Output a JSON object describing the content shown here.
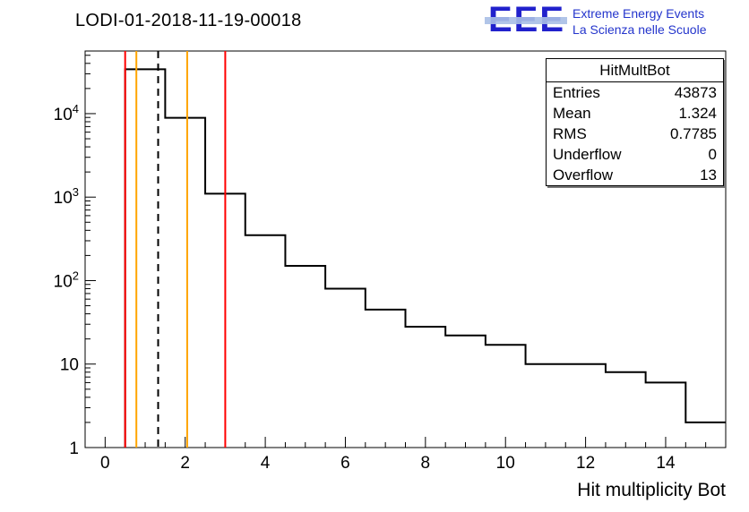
{
  "page": {
    "title": "LODI-01-2018-11-19-00018"
  },
  "logo": {
    "acronym": "EEE",
    "line1": "Extreme Energy Events",
    "line2": "La Scienza nelle Scuole",
    "color": "#2121cc"
  },
  "stats_box": {
    "title": "HitMultBot",
    "rows": [
      [
        "Entries",
        "43873"
      ],
      [
        "Mean",
        "1.324"
      ],
      [
        "RMS",
        "0.7785"
      ],
      [
        "Underflow",
        "0"
      ],
      [
        "Overflow",
        "13"
      ]
    ]
  },
  "chart_data": {
    "type": "bar",
    "subtype": "step-histogram",
    "title": "LODI-01-2018-11-19-00018",
    "xlabel": "Hit multiplicity Bot",
    "ylabel": "",
    "y_scale": "log",
    "grid": false,
    "legend": false,
    "x_range": [
      -0.5,
      15.5
    ],
    "y_range": [
      1,
      56234
    ],
    "categories": [
      0,
      1,
      2,
      3,
      4,
      5,
      6,
      7,
      8,
      9,
      10,
      11,
      12,
      13,
      14,
      15
    ],
    "values": [
      0,
      34000,
      8900,
      1100,
      350,
      150,
      80,
      45,
      28,
      22,
      17,
      10,
      10,
      8,
      6,
      2
    ],
    "line_color": "#000000",
    "x_major_ticks": [
      0,
      2,
      4,
      6,
      8,
      10,
      12,
      14
    ],
    "x_minor_step": 0.5,
    "y_major_ticks": [
      {
        "value": 1,
        "label": "1"
      },
      {
        "value": 10,
        "label": "10"
      },
      {
        "value": 100,
        "base": "10",
        "exp": "2"
      },
      {
        "value": 1000,
        "base": "10",
        "exp": "3"
      },
      {
        "value": 10000,
        "base": "10",
        "exp": "4"
      }
    ],
    "marker_lines": [
      {
        "x": 0.5,
        "color": "#ff0000",
        "style": "solid"
      },
      {
        "x": 0.78,
        "color": "#ffa500",
        "style": "solid"
      },
      {
        "x": 1.324,
        "color": "#000000",
        "style": "dashed"
      },
      {
        "x": 2.05,
        "color": "#ffa500",
        "style": "solid"
      },
      {
        "x": 3.0,
        "color": "#ff0000",
        "style": "solid"
      }
    ]
  }
}
